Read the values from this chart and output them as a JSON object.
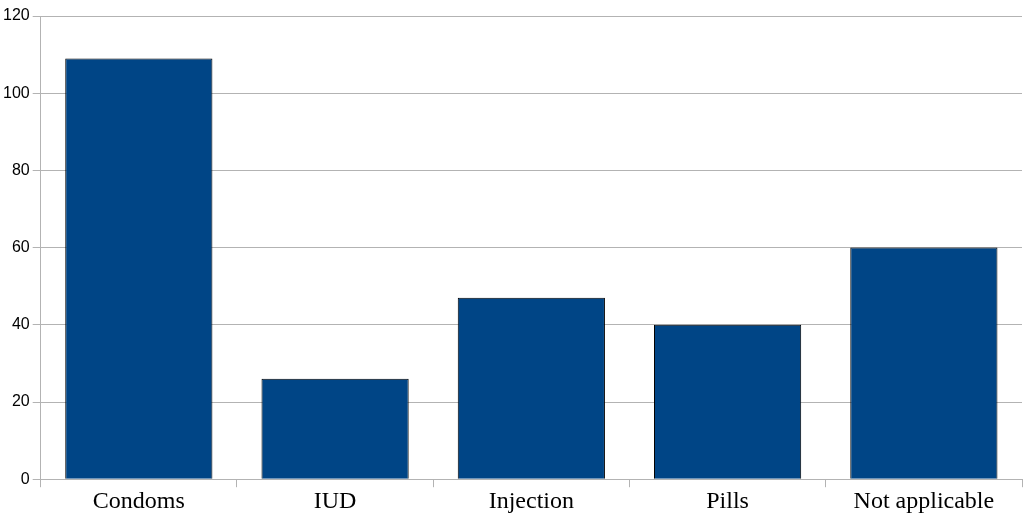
{
  "chart_data": {
    "type": "bar",
    "categories": [
      "Condoms",
      "IUD",
      "Injection",
      "Pills",
      "Not applicable"
    ],
    "values": [
      109,
      26,
      47,
      40,
      60
    ],
    "color": "#004586",
    "ylim": [
      0,
      120
    ],
    "yticks": [
      0,
      20,
      40,
      60,
      80,
      100,
      120
    ],
    "grid": "y",
    "legend": false
  }
}
